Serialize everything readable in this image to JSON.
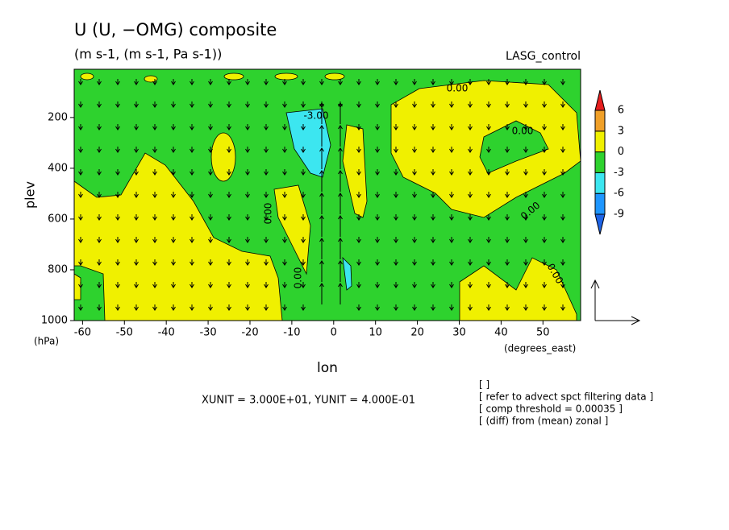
{
  "chart_data": {
    "type": "contour",
    "title": "U (U, −OMG) composite",
    "subtitle": "(m s-1, (m s-1, Pa s-1))",
    "dataset": "LASG_control",
    "x_label": "lon",
    "x_unit": "(degrees_east)",
    "y_label": "plev",
    "y_unit": "(hPa)",
    "xlim": [
      -62,
      59
    ],
    "ylim": [
      1000,
      10
    ],
    "xticks": [
      -60,
      -50,
      -40,
      -30,
      -20,
      -10,
      0,
      10,
      20,
      30,
      40,
      50
    ],
    "yticks": [
      200,
      400,
      600,
      800,
      1000
    ],
    "colorbar": {
      "levels": [
        -9,
        -6,
        -3,
        0,
        3,
        6
      ],
      "colors": [
        "#1e64e6",
        "#1e96ff",
        "#3ce6f0",
        "#2ed22e",
        "#f0f000",
        "#f0a028",
        "#e61e1e"
      ]
    },
    "contour_labels": [
      "0.00",
      "-3.00",
      "0.00",
      "0.00",
      "0.00",
      "0.00",
      "0.00"
    ],
    "vector_scale": "XUNIT = 3.000E+01, YUNIT = 4.000E-01",
    "notes": [
      "[  ]",
      "[ refer to advect spct filtering data ]",
      "[ comp threshold = 0.00035 ]",
      "[ (diff) from (mean) zonal ]"
    ]
  }
}
